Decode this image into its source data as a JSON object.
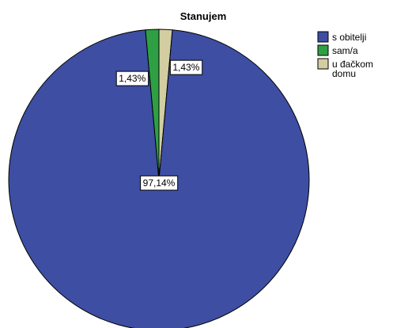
{
  "chart_data": {
    "type": "pie",
    "title": "Stanujem",
    "categories": [
      "s obitelji",
      "sam/a",
      "u đačkom domu"
    ],
    "values": [
      97.14,
      1.43,
      1.43
    ],
    "labels": [
      "97,14%",
      "1,43%",
      "1,43%"
    ],
    "legend": {
      "position": "top-right",
      "entries": [
        {
          "lines": [
            "s obitelji"
          ],
          "color": "#3d4ea3"
        },
        {
          "lines": [
            "sam/a"
          ],
          "color": "#2ea043"
        },
        {
          "lines": [
            "u đačkom",
            "domu"
          ],
          "color": "#d3cda2"
        }
      ]
    },
    "colors": [
      "#3d4ea3",
      "#2ea043",
      "#d3cda2"
    ]
  }
}
